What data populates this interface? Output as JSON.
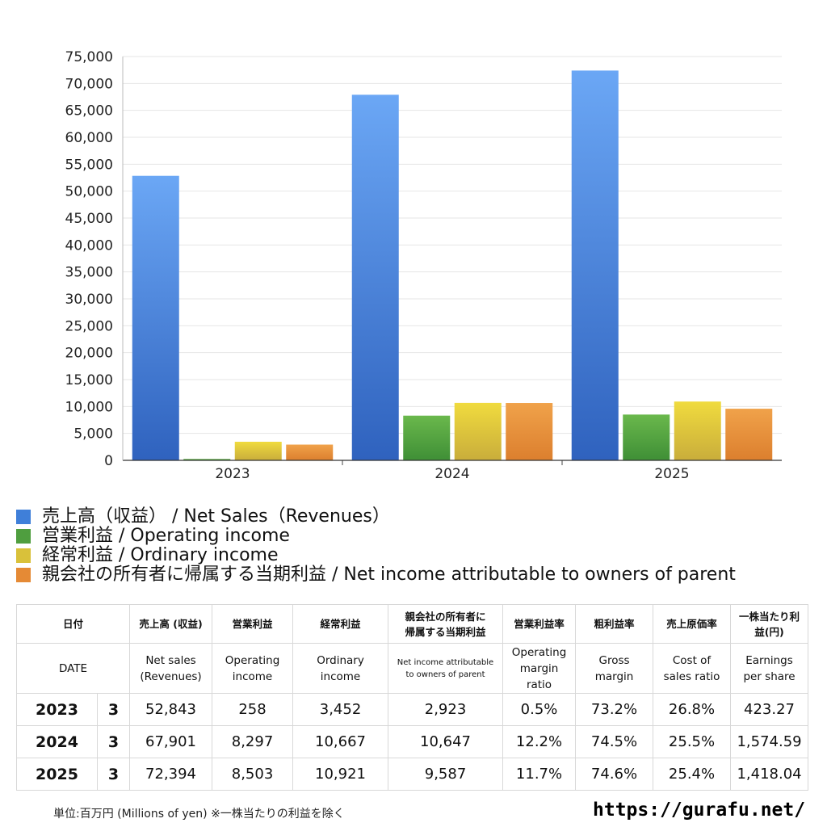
{
  "chart_data": {
    "type": "bar",
    "categories": [
      "2023",
      "2024",
      "2025"
    ],
    "series": [
      {
        "name": "売上高（収益） / Net Sales（Revenues）",
        "values": [
          52843,
          67901,
          72394
        ],
        "color_top": "#6ba7f5",
        "color_bottom": "#2f62be"
      },
      {
        "name": "営業利益 / Operating income",
        "values": [
          258,
          8297,
          8503
        ],
        "color_top": "#6ab84c",
        "color_bottom": "#3f8f36"
      },
      {
        "name": "経常利益 / Ordinary income",
        "values": [
          3452,
          10667,
          10921
        ],
        "color_top": "#f0db3e",
        "color_bottom": "#c9ad3b"
      },
      {
        "name": "親会社の所有者に帰属する当期利益 / Net income attributable to owners of parent",
        "values": [
          2923,
          10647,
          9587
        ],
        "color_top": "#f0a24a",
        "color_bottom": "#dc7f2e"
      }
    ],
    "ylim": [
      0,
      75000
    ],
    "yticks": [
      0,
      5000,
      10000,
      15000,
      20000,
      25000,
      30000,
      35000,
      40000,
      45000,
      50000,
      55000,
      60000,
      65000,
      70000,
      75000
    ],
    "ytick_labels": [
      "0",
      "5,000",
      "10,000",
      "15,000",
      "20,000",
      "25,000",
      "30,000",
      "35,000",
      "40,000",
      "45,000",
      "50,000",
      "55,000",
      "60,000",
      "65,000",
      "70,000",
      "75,000"
    ],
    "grid": true,
    "legend_position": "bottom",
    "title": "",
    "xlabel": "",
    "ylabel": ""
  },
  "legend": {
    "items": [
      {
        "label": "売上高（収益） / Net Sales（Revenues）",
        "color": "#3f7fd9"
      },
      {
        "label": "営業利益 / Operating income",
        "color": "#4f9e3f"
      },
      {
        "label": "経常利益 / Ordinary income",
        "color": "#d9c13a"
      },
      {
        "label": "親会社の所有者に帰属する当期利益 / Net income attributable to owners of parent",
        "color": "#e58a35"
      }
    ]
  },
  "table": {
    "header_jp": {
      "date": "日付",
      "net_sales": "売上高 (収益)",
      "operating_income": "営業利益",
      "ordinary_income": "経常利益",
      "net_income": "親会社の所有者に\n帰属する当期利益",
      "operating_margin": "営業利益率",
      "gross_margin": "粗利益率",
      "cost_ratio": "売上原価率",
      "eps": "一株当たり利\n益(円)"
    },
    "header_en": {
      "date": "DATE",
      "net_sales": "Net sales\n(Revenues)",
      "operating_income": "Operating\nincome",
      "ordinary_income": "Ordinary\nincome",
      "net_income": "Net income attributable\nto owners of parent",
      "operating_margin": "Operating\nmargin\nratio",
      "gross_margin": "Gross\nmargin",
      "cost_ratio": "Cost of\nsales ratio",
      "eps": "Earnings\nper share"
    },
    "rows": [
      {
        "year": "2023",
        "month": "3",
        "net_sales": "52,843",
        "operating_income": "258",
        "ordinary_income": "3,452",
        "net_income": "2,923",
        "operating_margin": "0.5%",
        "gross_margin": "73.2%",
        "cost_ratio": "26.8%",
        "eps": "423.27"
      },
      {
        "year": "2024",
        "month": "3",
        "net_sales": "67,901",
        "operating_income": "8,297",
        "ordinary_income": "10,667",
        "net_income": "10,647",
        "operating_margin": "12.2%",
        "gross_margin": "74.5%",
        "cost_ratio": "25.5%",
        "eps": "1,574.59"
      },
      {
        "year": "2025",
        "month": "3",
        "net_sales": "72,394",
        "operating_income": "8,503",
        "ordinary_income": "10,921",
        "net_income": "9,587",
        "operating_margin": "11.7%",
        "gross_margin": "74.6%",
        "cost_ratio": "25.4%",
        "eps": "1,418.04"
      }
    ]
  },
  "footer": {
    "note": "単位:百万円 (Millions of yen) ※一株当たりの利益を除く",
    "url": "https://gurafu.net/"
  }
}
